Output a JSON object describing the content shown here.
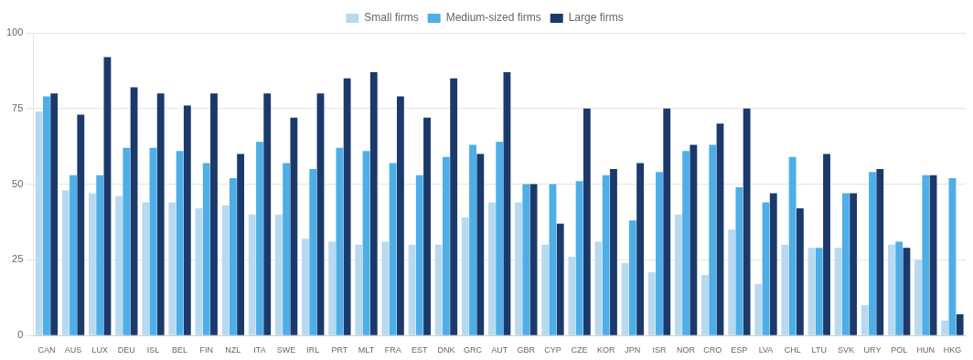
{
  "chart_data": {
    "type": "bar",
    "categories": [
      "CAN",
      "AUS",
      "LUX",
      "DEU",
      "ISL",
      "BEL",
      "FIN",
      "NZL",
      "ITA",
      "SWE",
      "IRL",
      "PRT",
      "MLT",
      "FRA",
      "EST",
      "DNK",
      "GRC",
      "AUT",
      "GBR",
      "CYP",
      "CZE",
      "KOR",
      "JPN",
      "ISR",
      "NOR",
      "CRO",
      "ESP",
      "LVA",
      "CHL",
      "LTU",
      "SVK",
      "URY",
      "POL",
      "HUN",
      "HKG"
    ],
    "series": [
      {
        "name": "Small firms",
        "color": "#b8d9f0",
        "values": [
          74,
          48,
          47,
          46,
          44,
          44,
          42,
          43,
          40,
          40,
          32,
          31,
          30,
          31,
          30,
          30,
          39,
          44,
          44,
          30,
          26,
          31,
          24,
          21,
          40,
          20,
          35,
          17,
          30,
          29,
          29,
          10,
          30,
          25,
          5
        ]
      },
      {
        "name": "Medium-sized firms",
        "color": "#4daee8",
        "values": [
          79,
          53,
          53,
          62,
          62,
          61,
          57,
          52,
          64,
          57,
          55,
          62,
          61,
          57,
          53,
          59,
          63,
          64,
          50,
          50,
          51,
          53,
          38,
          54,
          61,
          63,
          49,
          44,
          59,
          29,
          47,
          54,
          31,
          53,
          52
        ]
      },
      {
        "name": "Large firms",
        "color": "#1b3a6b",
        "values": [
          80,
          73,
          92,
          82,
          80,
          76,
          80,
          60,
          80,
          72,
          80,
          85,
          87,
          79,
          72,
          85,
          60,
          87,
          50,
          37,
          75,
          55,
          57,
          75,
          63,
          70,
          75,
          47,
          42,
          60,
          47,
          55,
          29,
          53,
          7
        ]
      }
    ],
    "ylim": [
      0,
      100
    ],
    "yticks": [
      0,
      25,
      50,
      75,
      100
    ],
    "grid": true,
    "legend": "top"
  }
}
